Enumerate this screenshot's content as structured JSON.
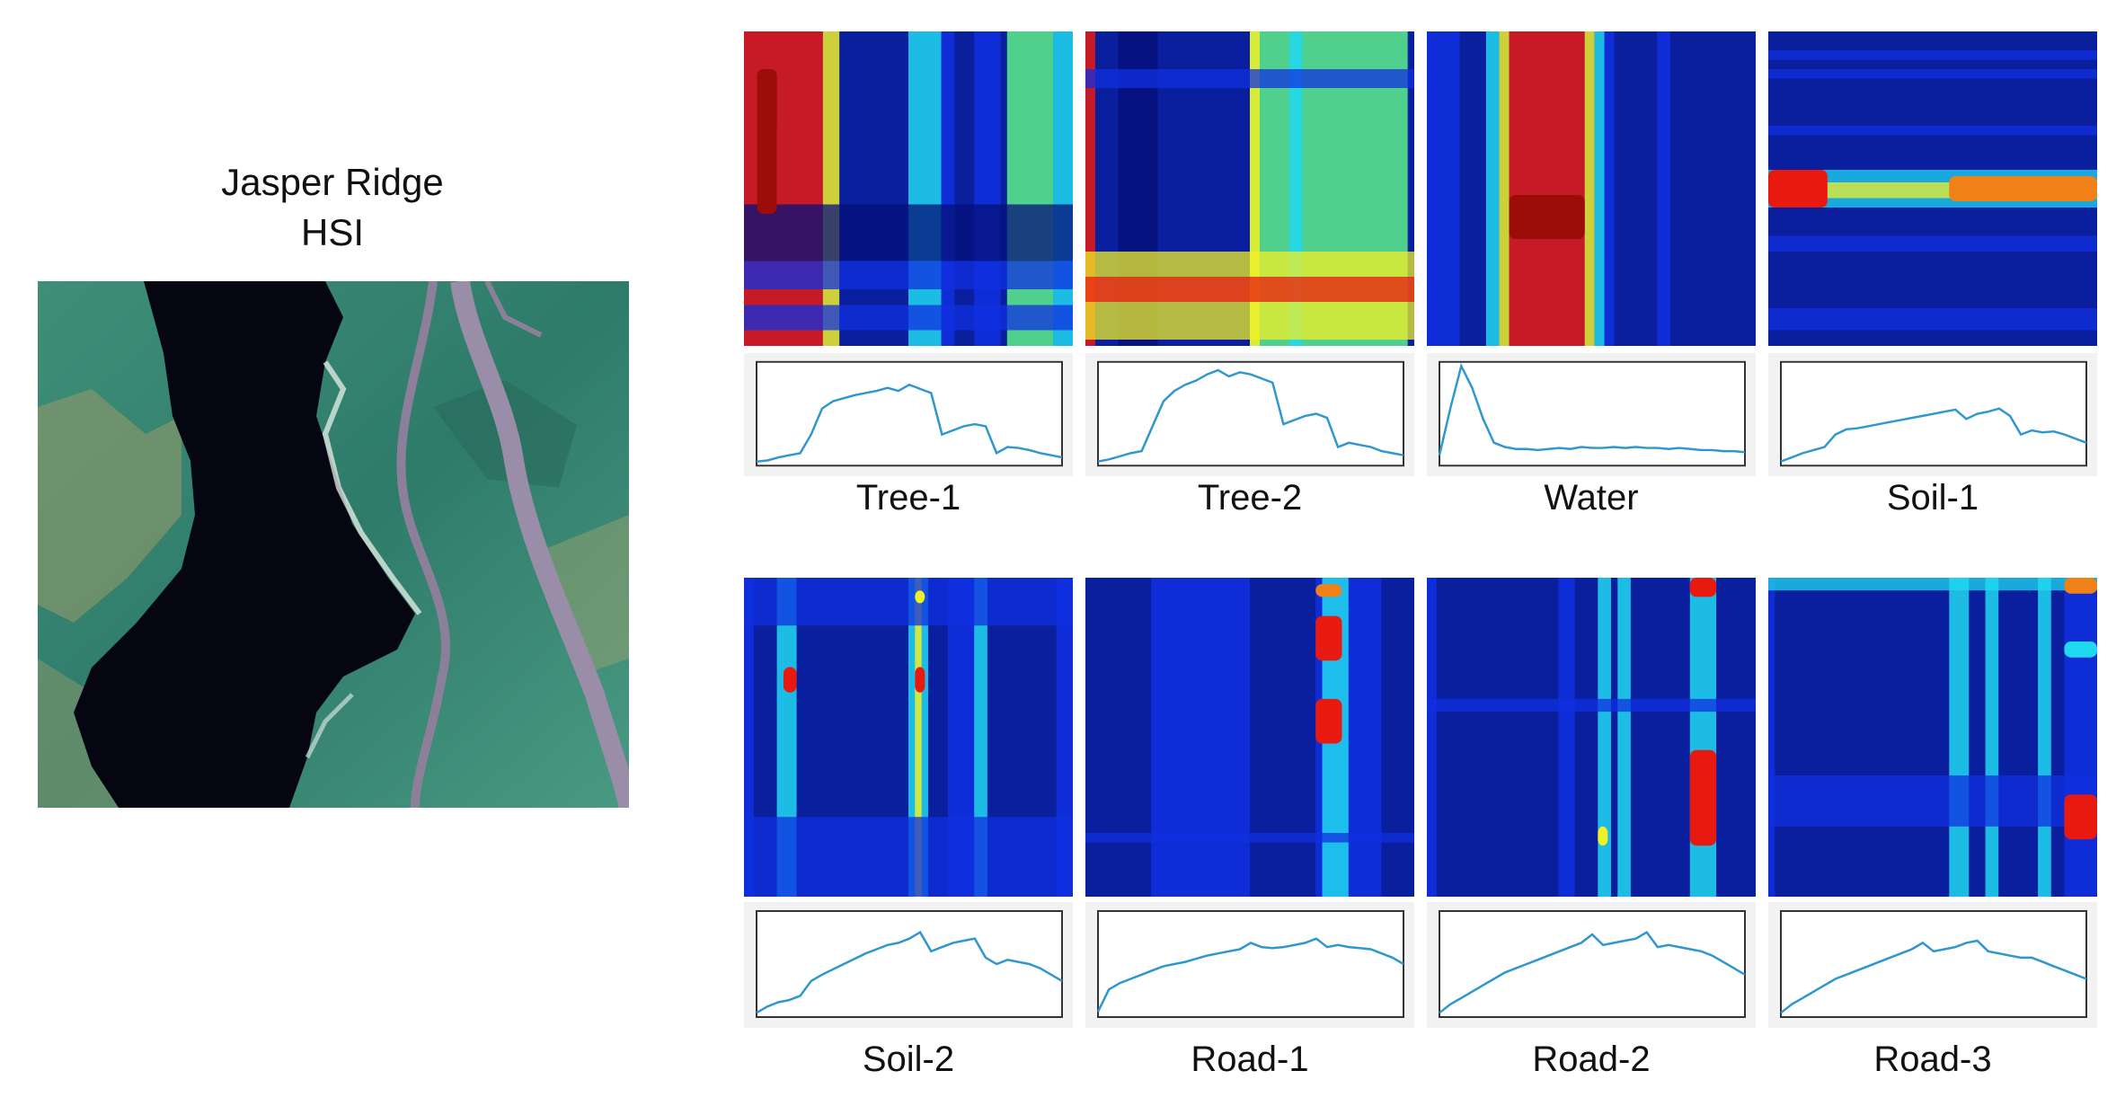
{
  "hsi": {
    "title_line1": "Jasper Ridge",
    "title_line2": "HSI"
  },
  "endmembers": [
    {
      "label": "Tree-1",
      "spectrum": [
        0.04,
        0.05,
        0.08,
        0.1,
        0.12,
        0.3,
        0.55,
        0.62,
        0.65,
        0.68,
        0.7,
        0.72,
        0.75,
        0.72,
        0.78,
        0.74,
        0.7,
        0.3,
        0.34,
        0.38,
        0.4,
        0.38,
        0.12,
        0.18,
        0.17,
        0.15,
        0.12,
        0.1,
        0.08
      ],
      "palette": "tree1"
    },
    {
      "label": "Tree-2",
      "spectrum": [
        0.04,
        0.06,
        0.09,
        0.12,
        0.14,
        0.38,
        0.62,
        0.72,
        0.78,
        0.82,
        0.88,
        0.92,
        0.86,
        0.9,
        0.88,
        0.84,
        0.8,
        0.4,
        0.44,
        0.48,
        0.5,
        0.46,
        0.18,
        0.22,
        0.2,
        0.18,
        0.14,
        0.12,
        0.1
      ],
      "palette": "tree2"
    },
    {
      "label": "Water",
      "spectrum": [
        0.1,
        0.55,
        0.96,
        0.75,
        0.45,
        0.22,
        0.18,
        0.16,
        0.16,
        0.15,
        0.16,
        0.17,
        0.16,
        0.18,
        0.17,
        0.17,
        0.18,
        0.17,
        0.18,
        0.17,
        0.17,
        0.16,
        0.17,
        0.16,
        0.15,
        0.15,
        0.14,
        0.14,
        0.13
      ],
      "palette": "water"
    },
    {
      "label": "Soil-1",
      "spectrum": [
        0.04,
        0.08,
        0.12,
        0.15,
        0.18,
        0.3,
        0.35,
        0.36,
        0.38,
        0.4,
        0.42,
        0.44,
        0.46,
        0.48,
        0.5,
        0.52,
        0.54,
        0.45,
        0.5,
        0.52,
        0.55,
        0.48,
        0.3,
        0.34,
        0.32,
        0.33,
        0.3,
        0.26,
        0.22
      ],
      "palette": "soil1"
    },
    {
      "label": "Soil-2",
      "spectrum": [
        0.04,
        0.1,
        0.14,
        0.16,
        0.2,
        0.34,
        0.4,
        0.45,
        0.5,
        0.55,
        0.6,
        0.64,
        0.68,
        0.7,
        0.74,
        0.8,
        0.62,
        0.66,
        0.7,
        0.72,
        0.74,
        0.56,
        0.5,
        0.54,
        0.52,
        0.5,
        0.46,
        0.4,
        0.34
      ],
      "palette": "soil2"
    },
    {
      "label": "Road-1",
      "spectrum": [
        0.05,
        0.26,
        0.32,
        0.36,
        0.4,
        0.44,
        0.48,
        0.5,
        0.52,
        0.55,
        0.58,
        0.6,
        0.62,
        0.64,
        0.7,
        0.66,
        0.65,
        0.66,
        0.68,
        0.7,
        0.74,
        0.66,
        0.68,
        0.66,
        0.65,
        0.64,
        0.6,
        0.56,
        0.5
      ],
      "palette": "road1"
    },
    {
      "label": "Road-2",
      "spectrum": [
        0.04,
        0.12,
        0.18,
        0.24,
        0.3,
        0.36,
        0.42,
        0.46,
        0.5,
        0.54,
        0.58,
        0.62,
        0.66,
        0.7,
        0.78,
        0.68,
        0.7,
        0.72,
        0.74,
        0.8,
        0.66,
        0.68,
        0.66,
        0.64,
        0.62,
        0.58,
        0.52,
        0.46,
        0.4
      ],
      "palette": "road2"
    },
    {
      "label": "Road-3",
      "spectrum": [
        0.04,
        0.12,
        0.18,
        0.24,
        0.3,
        0.36,
        0.4,
        0.44,
        0.48,
        0.52,
        0.56,
        0.6,
        0.64,
        0.7,
        0.62,
        0.64,
        0.66,
        0.7,
        0.72,
        0.62,
        0.6,
        0.58,
        0.56,
        0.56,
        0.52,
        0.48,
        0.44,
        0.4,
        0.36
      ],
      "palette": "road3"
    }
  ]
}
